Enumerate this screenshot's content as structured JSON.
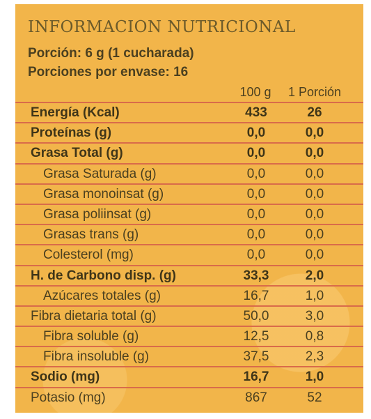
{
  "title": "INFORMACION NUTRICIONAL",
  "serving": {
    "portion": "Porción: 6 g (1 cucharada)",
    "per_package": "Porciones por envase: 16"
  },
  "columns": {
    "per100": "100 g",
    "per_portion": "1 Porción"
  },
  "rows": [
    {
      "label": "Energía (Kcal)",
      "v100": "433",
      "vportion": "26",
      "bold": true,
      "indent": false
    },
    {
      "label": "Proteínas (g)",
      "v100": "0,0",
      "vportion": "0,0",
      "bold": true,
      "indent": false
    },
    {
      "label": "Grasa Total (g)",
      "v100": "0,0",
      "vportion": "0,0",
      "bold": true,
      "indent": false
    },
    {
      "label": "Grasa Saturada (g)",
      "v100": "0,0",
      "vportion": "0,0",
      "bold": false,
      "indent": true
    },
    {
      "label": "Grasa monoinsat (g)",
      "v100": "0,0",
      "vportion": "0,0",
      "bold": false,
      "indent": true
    },
    {
      "label": "Grasa poliinsat (g)",
      "v100": "0,0",
      "vportion": "0,0",
      "bold": false,
      "indent": true
    },
    {
      "label": "Grasas trans (g)",
      "v100": "0,0",
      "vportion": "0,0",
      "bold": false,
      "indent": true
    },
    {
      "label": "Colesterol (mg)",
      "v100": "0,0",
      "vportion": "0,0",
      "bold": false,
      "indent": true
    },
    {
      "label": "H. de Carbono disp. (g)",
      "v100": "33,3",
      "vportion": "2,0",
      "bold": true,
      "indent": false
    },
    {
      "label": "Azúcares totales (g)",
      "v100": "16,7",
      "vportion": "1,0",
      "bold": false,
      "indent": true
    },
    {
      "label": "Fibra dietaria total (g)",
      "v100": "50,0",
      "vportion": "3,0",
      "bold": false,
      "indent": false
    },
    {
      "label": "Fibra soluble (g)",
      "v100": "12,5",
      "vportion": "0,8",
      "bold": false,
      "indent": true
    },
    {
      "label": "Fibra insoluble (g)",
      "v100": "37,5",
      "vportion": "2,3",
      "bold": false,
      "indent": true
    },
    {
      "label": "Sodio (mg)",
      "v100": "16,7",
      "vportion": "1,0",
      "bold": true,
      "indent": false
    },
    {
      "label": "Potasio (mg)",
      "v100": "867",
      "vportion": "52",
      "bold": false,
      "indent": false
    }
  ],
  "colors": {
    "background": "#f2b54a",
    "rule": "#d96b4a",
    "text": "#4b4020",
    "title": "#6b5a2a"
  }
}
